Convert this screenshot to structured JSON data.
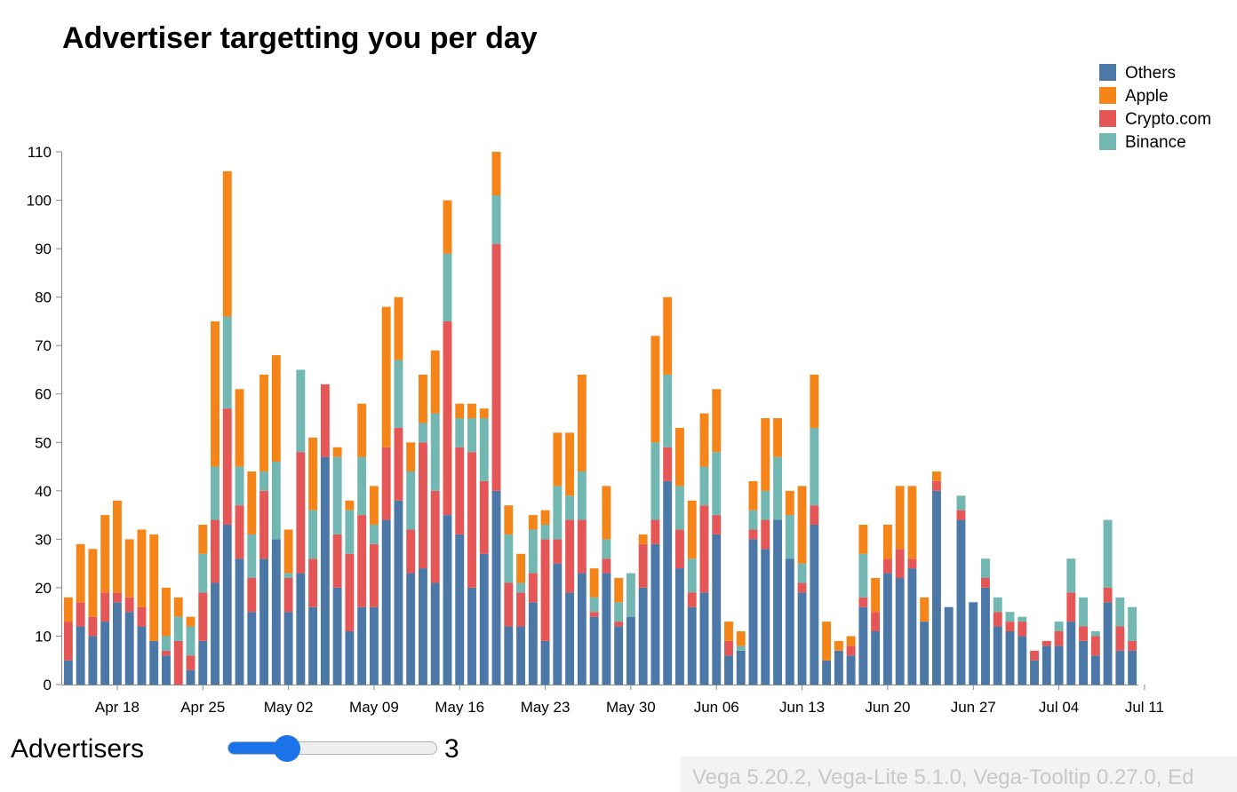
{
  "chart_data": {
    "type": "bar",
    "stacked": true,
    "title": "Advertiser targetting you per day",
    "ylim": [
      0,
      110
    ],
    "y_ticks": [
      0,
      10,
      20,
      30,
      40,
      50,
      60,
      70,
      80,
      90,
      100,
      110
    ],
    "x_start": "2021-04-14",
    "x_ticks": [
      "Apr 18",
      "Apr 25",
      "May 02",
      "May 09",
      "May 16",
      "May 23",
      "May 30",
      "Jun 06",
      "Jun 13",
      "Jun 20",
      "Jun 27",
      "Jul 04",
      "Jul 11"
    ],
    "legend_position": "top-right",
    "series": [
      {
        "name": "Others",
        "color": "#4c78a8",
        "values": [
          5,
          12,
          10,
          13,
          17,
          15,
          12,
          9,
          6,
          0,
          3,
          9,
          21,
          33,
          26,
          15,
          26,
          30,
          15,
          23,
          16,
          47,
          20,
          11,
          16,
          16,
          34,
          38,
          23,
          24,
          21,
          35,
          31,
          20,
          27,
          40,
          12,
          12,
          17,
          9,
          25,
          19,
          23,
          14,
          23,
          12,
          14,
          20,
          29,
          42,
          24,
          16,
          19,
          31,
          6,
          7,
          30,
          28,
          34,
          26,
          19,
          33,
          5,
          7,
          6,
          16,
          11,
          23,
          22,
          24,
          13,
          40,
          16,
          34,
          17,
          20,
          12,
          11,
          10,
          5,
          8,
          8,
          13,
          9,
          6,
          17,
          7,
          7
        ]
      },
      {
        "name": "Crypto.com",
        "color": "#e45756",
        "values": [
          8,
          5,
          4,
          6,
          2,
          3,
          4,
          0,
          1,
          9,
          3,
          10,
          13,
          24,
          11,
          7,
          14,
          0,
          7,
          25,
          10,
          15,
          11,
          16,
          19,
          13,
          15,
          15,
          9,
          26,
          19,
          40,
          18,
          28,
          15,
          51,
          9,
          7,
          6,
          21,
          5,
          15,
          11,
          1,
          3,
          1,
          0,
          9,
          5,
          7,
          8,
          3,
          18,
          4,
          3,
          0,
          2,
          6,
          0,
          0,
          2,
          4,
          0,
          0,
          2,
          2,
          4,
          3,
          6,
          2,
          0,
          2,
          0,
          2,
          0,
          2,
          3,
          2,
          3,
          2,
          1,
          3,
          6,
          3,
          4,
          3,
          5,
          2
        ]
      },
      {
        "name": "Binance",
        "color": "#72b7b2",
        "values": [
          0,
          0,
          0,
          0,
          0,
          0,
          0,
          0,
          3,
          5,
          6,
          8,
          11,
          19,
          8,
          9,
          4,
          16,
          1,
          17,
          10,
          0,
          16,
          9,
          12,
          4,
          0,
          14,
          12,
          4,
          16,
          14,
          6,
          7,
          13,
          10,
          10,
          2,
          9,
          3,
          11,
          5,
          10,
          3,
          4,
          4,
          9,
          0,
          16,
          15,
          9,
          7,
          8,
          13,
          0,
          1,
          4,
          6,
          13,
          9,
          4,
          16,
          0,
          0,
          0,
          9,
          0,
          0,
          0,
          0,
          0,
          0,
          0,
          3,
          0,
          4,
          3,
          2,
          1,
          0,
          0,
          2,
          7,
          6,
          1,
          14,
          6,
          7
        ]
      },
      {
        "name": "Apple",
        "color": "#f58518",
        "values": [
          5,
          12,
          14,
          16,
          19,
          12,
          16,
          22,
          10,
          4,
          2,
          6,
          30,
          30,
          16,
          13,
          20,
          22,
          9,
          0,
          15,
          0,
          2,
          2,
          11,
          8,
          29,
          13,
          6,
          10,
          13,
          11,
          3,
          3,
          2,
          9,
          6,
          6,
          3,
          3,
          11,
          13,
          20,
          6,
          11,
          5,
          0,
          2,
          22,
          16,
          12,
          12,
          11,
          13,
          4,
          3,
          6,
          15,
          8,
          5,
          16,
          11,
          8,
          2,
          2,
          6,
          7,
          7,
          13,
          15,
          5,
          2,
          0,
          0,
          0,
          0,
          0,
          0,
          0,
          0,
          0,
          0,
          0,
          0,
          0,
          0,
          0,
          0
        ]
      }
    ]
  },
  "controls": {
    "label": "Advertisers",
    "value": "3",
    "slider_fraction": 0.25
  },
  "footer": {
    "text": "Vega 5.20.2, Vega-Lite 5.1.0, Vega-Tooltip 0.27.0, Ed"
  }
}
